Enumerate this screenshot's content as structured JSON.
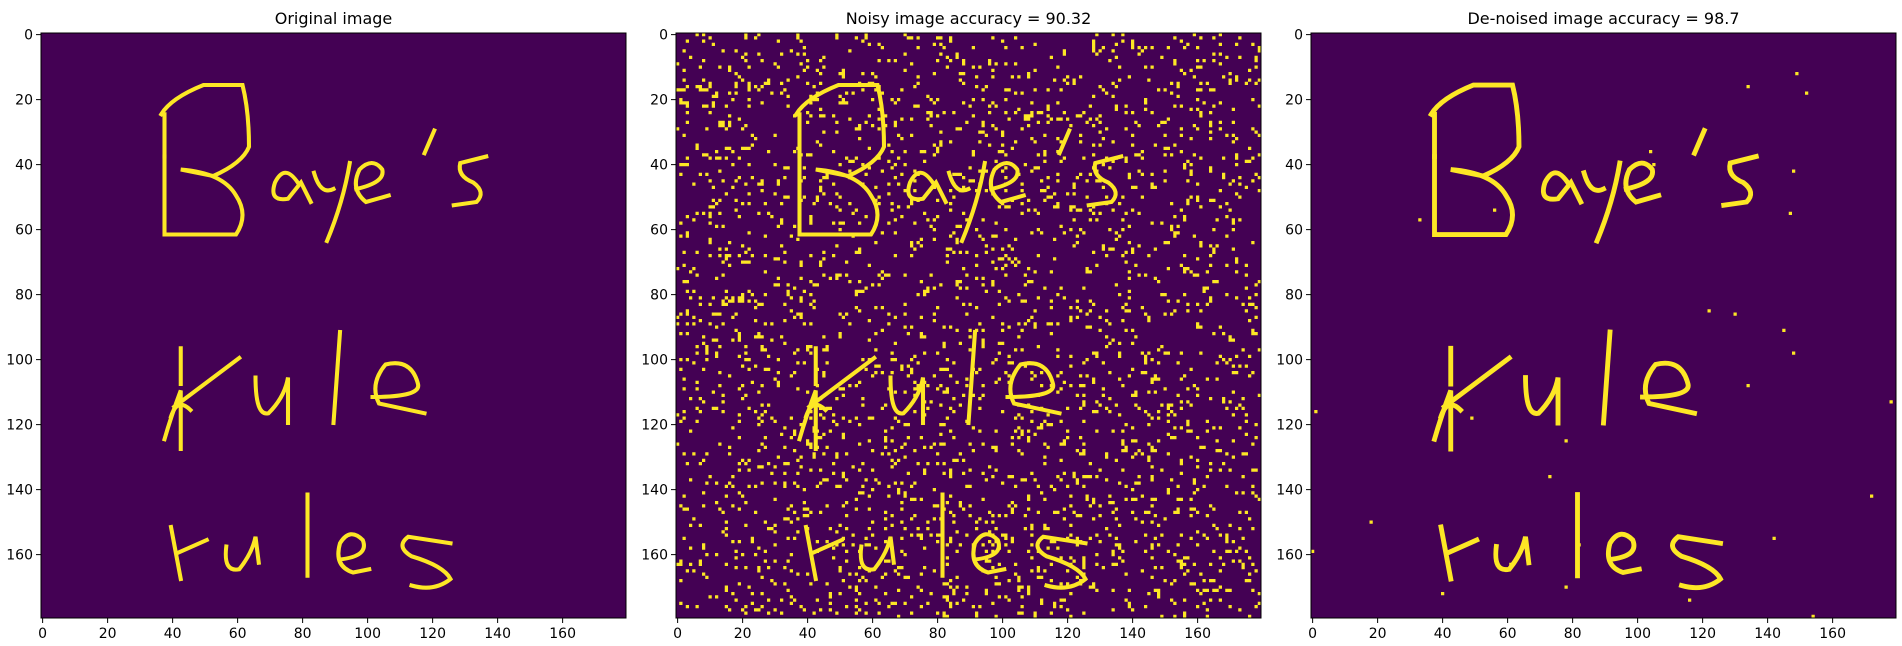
{
  "figure": {
    "panels": [
      {
        "title": "Original image",
        "noise": "none"
      },
      {
        "title": "Noisy image accuracy = 90.32",
        "noise": "heavy"
      },
      {
        "title": "De-noised image accuracy = 98.7",
        "noise": "light"
      }
    ],
    "grid_size": 180,
    "x_ticks": [
      "0",
      "20",
      "40",
      "60",
      "80",
      "100",
      "120",
      "140",
      "160"
    ],
    "y_ticks": [
      "0",
      "20",
      "40",
      "60",
      "80",
      "100",
      "120",
      "140",
      "160"
    ],
    "colors": {
      "background": "#440154",
      "foreground": "#fde725"
    },
    "handwriting_lines": [
      "Baye's",
      "rule",
      "rules"
    ]
  }
}
